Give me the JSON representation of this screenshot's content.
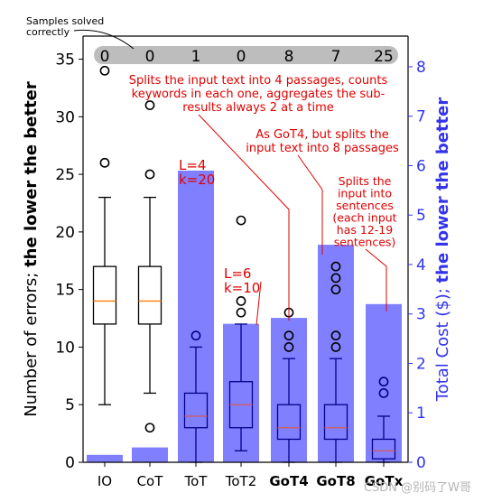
{
  "chart_data": {
    "type": "box+bar",
    "categories": [
      "IO",
      "CoT",
      "ToT",
      "ToT2",
      "GoT4",
      "GoT8",
      "GoTx"
    ],
    "bold_categories": [
      "GoT4",
      "GoT8",
      "GoTx"
    ],
    "left_axis": {
      "label_parts": [
        "Number of errors; ",
        "the lower the better"
      ],
      "ylim": [
        0,
        37
      ],
      "ticks": [
        0,
        5,
        10,
        15,
        20,
        25,
        30,
        35
      ]
    },
    "right_axis": {
      "label_parts": [
        "Total Cost ($); ",
        "the lower the better"
      ],
      "ylim": [
        0,
        8.62
      ],
      "ticks": [
        0,
        1,
        2,
        3,
        4,
        5,
        6,
        7,
        8
      ]
    },
    "boxes_black": [
      {
        "category": "IO",
        "whislo": 5,
        "q1": 12,
        "med": 14,
        "q3": 17,
        "whishi": 23,
        "fliers": [
          26,
          34
        ]
      },
      {
        "category": "CoT",
        "whislo": 6,
        "q1": 12,
        "med": 14,
        "q3": 17,
        "whishi": 23,
        "fliers": [
          3,
          25,
          31
        ]
      }
    ],
    "boxes_blue": [
      {
        "category": "ToT",
        "whislo": 0,
        "q1": 3,
        "med": 4,
        "q3": 6,
        "whishi": 10,
        "fliers": [
          11
        ]
      },
      {
        "category": "ToT2",
        "whislo": 1,
        "q1": 3,
        "med": 5,
        "q3": 7,
        "whishi": 12,
        "fliers": [
          13,
          14,
          21
        ]
      },
      {
        "category": "GoT4",
        "whislo": 0,
        "q1": 2,
        "med": 3,
        "q3": 5,
        "whishi": 9,
        "fliers": [
          10,
          11,
          13
        ]
      },
      {
        "category": "GoT8",
        "whislo": 0,
        "q1": 2,
        "med": 3,
        "q3": 5,
        "whishi": 9,
        "fliers": [
          10,
          11,
          15,
          16,
          17
        ]
      },
      {
        "category": "GoTx",
        "whislo": 0,
        "q1": 0.3,
        "med": 1,
        "q3": 2,
        "whishi": 4,
        "fliers": [
          6,
          7
        ]
      }
    ],
    "cost_bars": [
      {
        "category": "IO",
        "value": 0.15
      },
      {
        "category": "CoT",
        "value": 0.3
      },
      {
        "category": "ToT",
        "value": 5.9
      },
      {
        "category": "ToT2",
        "value": 2.8
      },
      {
        "category": "GoT4",
        "value": 2.92
      },
      {
        "category": "GoT8",
        "value": 4.4
      },
      {
        "category": "GoTx",
        "value": 3.2
      }
    ],
    "samples_solved": {
      "label_lines": [
        "Samples solved",
        "correctly"
      ],
      "values": [
        "0",
        "0",
        "1",
        "0",
        "8",
        "7",
        "25"
      ]
    },
    "annotations": [
      {
        "target": "ToT",
        "lines": [
          "L=4",
          "k=20"
        ]
      },
      {
        "target": "ToT2",
        "lines": [
          "L=6",
          "k=10"
        ]
      },
      {
        "target": "GoT4",
        "lines": [
          "Splits the input text into 4 passages, counts",
          "keywords in each one, aggregates the sub-",
          "results always 2 at a time"
        ]
      },
      {
        "target": "GoT8",
        "lines": [
          "As GoT4, but splits the",
          "input text into 8 passages"
        ]
      },
      {
        "target": "GoTx",
        "lines": [
          "Splits the",
          "input into",
          "sentences",
          "(each input",
          "has 12-19",
          "sentences)"
        ]
      }
    ],
    "colors": {
      "bar": "#8080ff",
      "blue_box": "#00008b",
      "median": "#ff7f0e",
      "median_blue": "#d45a5a",
      "annotation": "#e00000",
      "right_axis": "#3333ee",
      "samples_band": "#bdbdbd"
    }
  },
  "watermark": "CSDN @别码了W哥"
}
